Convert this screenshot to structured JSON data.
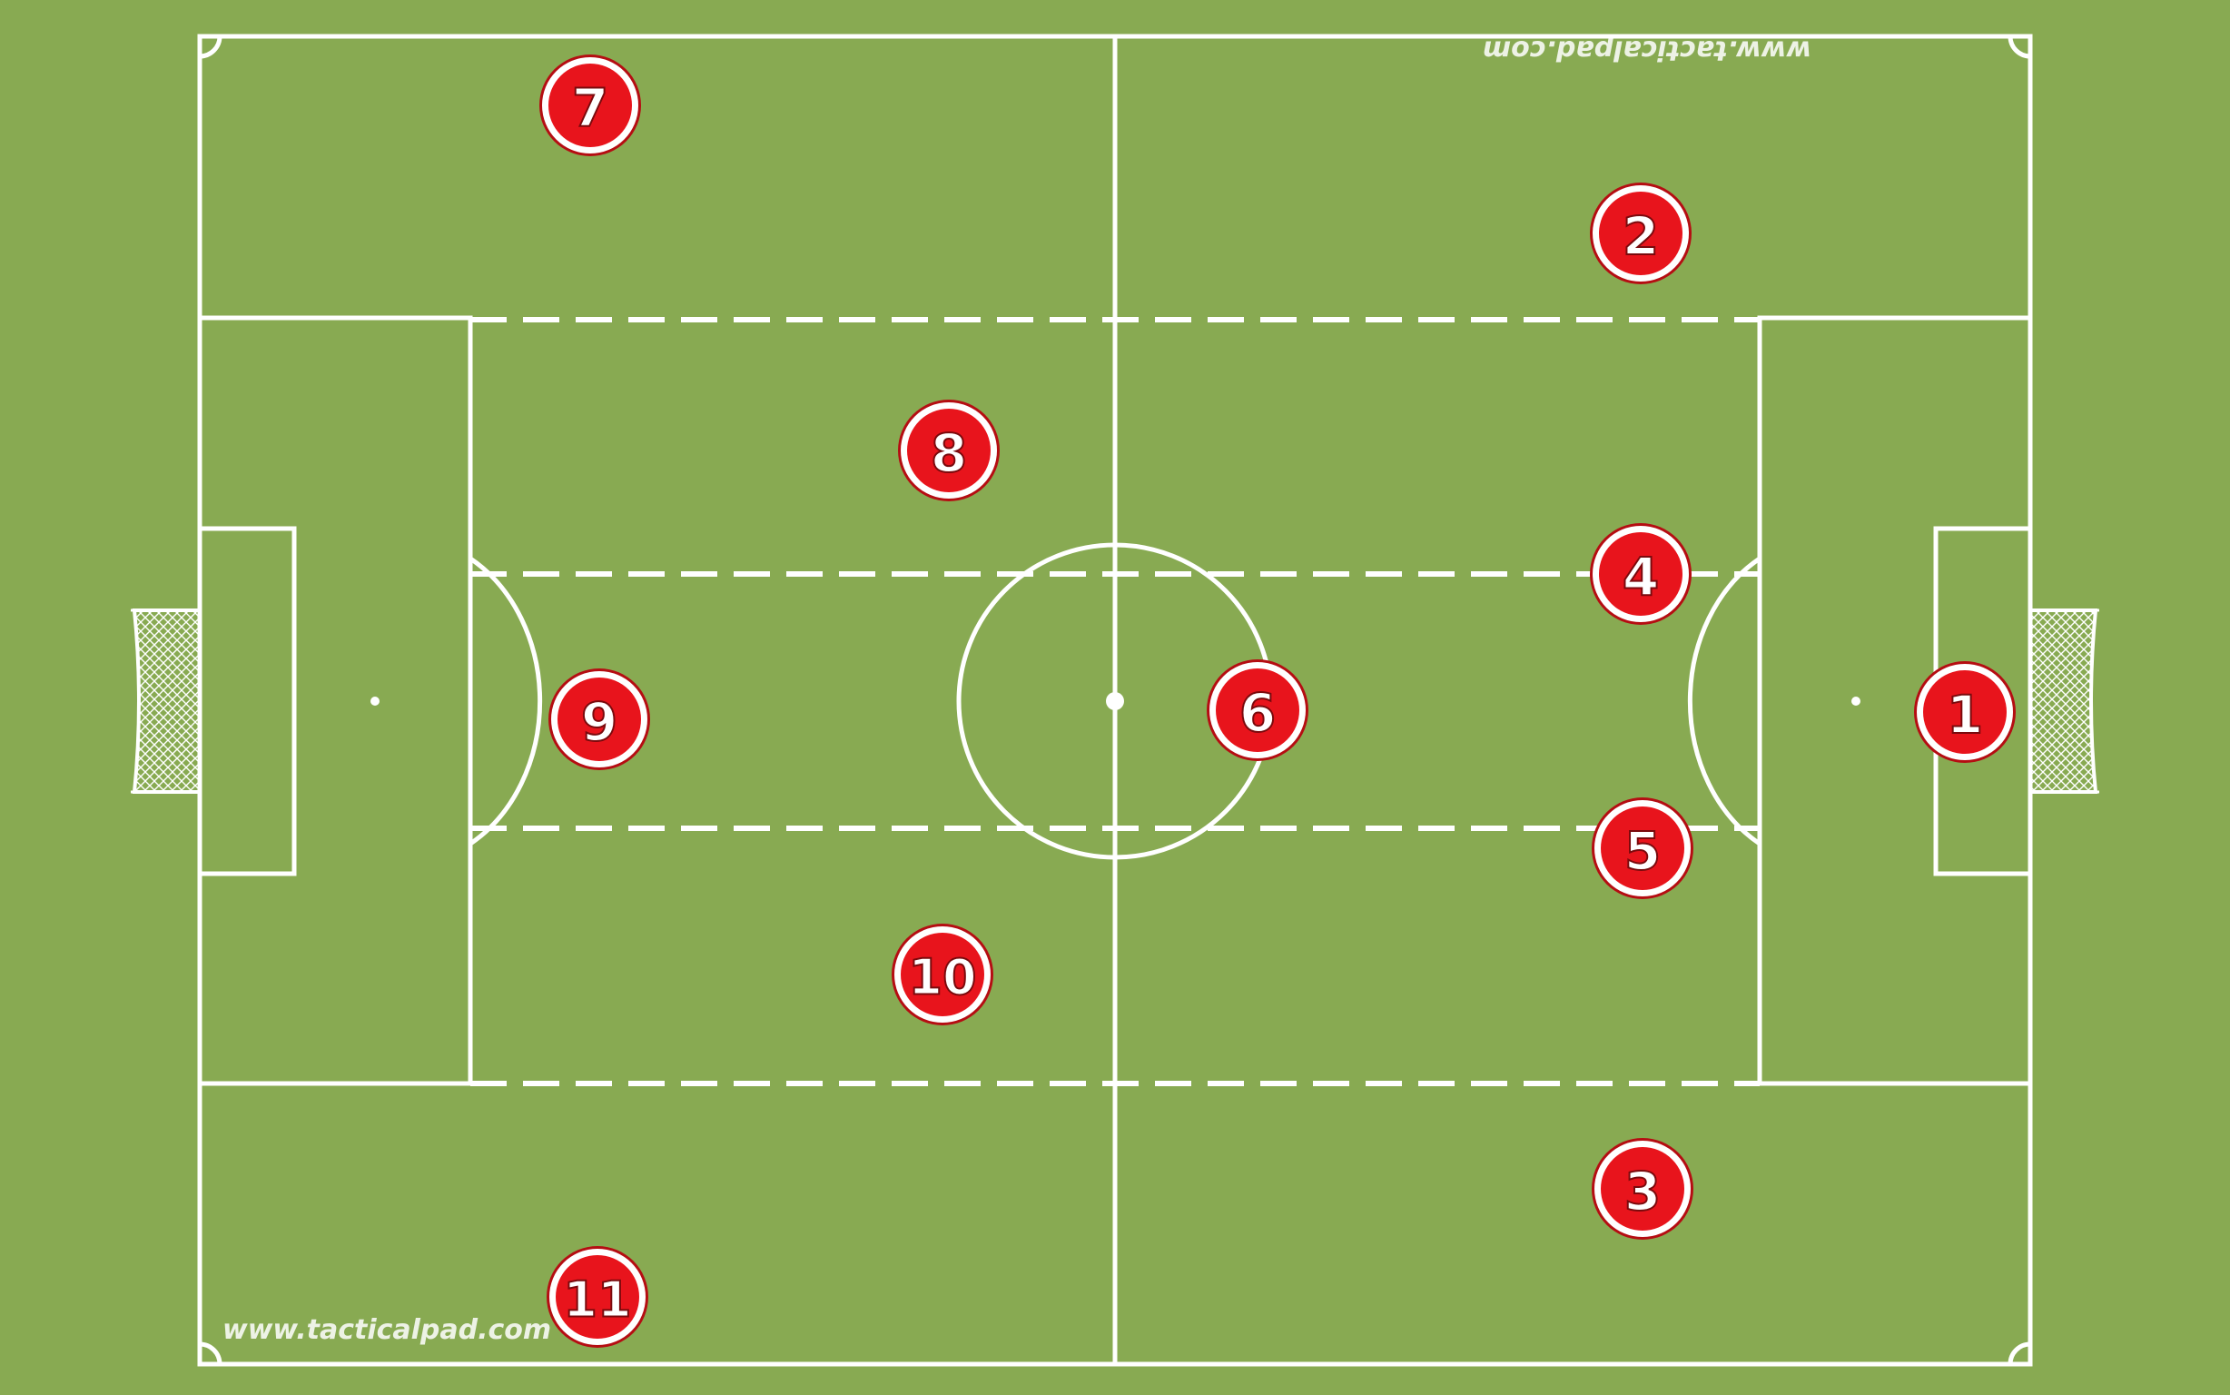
{
  "colors": {
    "grass": "#88aa52",
    "lines": "#ffffff",
    "player_fill": "#e8141c",
    "player_ring": "#ffffff",
    "player_outline": "#b50d12",
    "player_text": "#ffffff"
  },
  "watermark": {
    "bottom_left": "www.tacticalpad.com",
    "top_right_mirrored": "www.tacticalpad.com"
  },
  "players": [
    {
      "number": "7"
    },
    {
      "number": "2"
    },
    {
      "number": "8"
    },
    {
      "number": "4"
    },
    {
      "number": "9"
    },
    {
      "number": "6"
    },
    {
      "number": "1"
    },
    {
      "number": "5"
    },
    {
      "number": "10"
    },
    {
      "number": "3"
    },
    {
      "number": "11"
    }
  ]
}
